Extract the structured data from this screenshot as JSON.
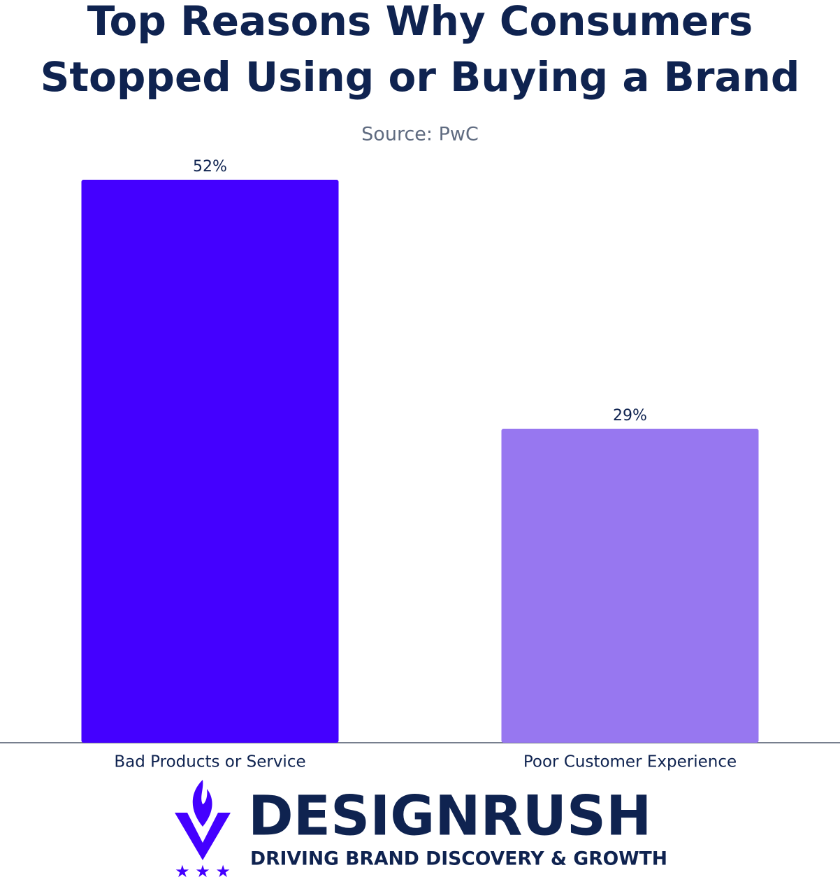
{
  "chart_data": {
    "type": "bar",
    "title": [
      "Top Reasons Why Consumers",
      "Stopped Using or Buying a Brand"
    ],
    "subtitle": "Source: PwC",
    "categories": [
      "Bad Products or Service",
      "Poor Customer Experience"
    ],
    "values": [
      52,
      29
    ],
    "value_labels": [
      "52%",
      "29%"
    ],
    "colors": [
      "#4400ff",
      "#9777f0"
    ]
  },
  "logo": {
    "name": "DESIGNRUSH",
    "tagline": "DRIVING BRAND DISCOVERY & GROWTH"
  }
}
